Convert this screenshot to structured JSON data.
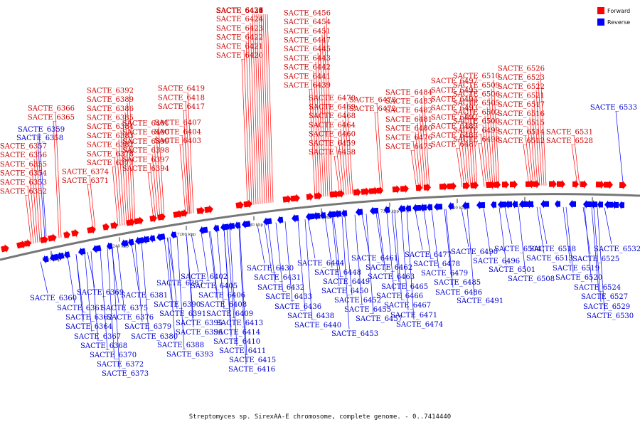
{
  "legend": {
    "forward_label": "Forward",
    "reverse_label": "Reverse",
    "forward_color": "#ff0000",
    "reverse_color": "#0000ff"
  },
  "caption": "Streptomyces sp. SirexAA-E chromosome, complete genome. - 0..7414440",
  "axis_ticks": [
    "7220 kbp",
    "7240 kbp",
    "7260 kbp",
    "7280 kbp",
    "7300 kbp",
    "7320 kbp",
    "7340 kbp",
    "7360 kbp",
    "7380 kbp"
  ],
  "forward_genes": [
    "SACTE_6352",
    "SACTE_6353",
    "SACTE_6354",
    "SACTE_6355",
    "SACTE_6356",
    "SACTE_6357",
    "SACTE_6365",
    "SACTE_6366",
    "SACTE_6371",
    "SACTE_6374",
    "SACTE_6377",
    "SACTE_6378",
    "SACTE_6382",
    "SACTE_6383",
    "SACTE_6384",
    "SACTE_6385",
    "SACTE_6386",
    "SACTE_6389",
    "SACTE_6392",
    "SACTE_6394",
    "SACTE_6397",
    "SACTE_6398",
    "SACTE_6399",
    "SACTE_6400",
    "SACTE_6401",
    "SACTE_6403",
    "SACTE_6404",
    "SACTE_6407",
    "SACTE_6417",
    "SACTE_6418",
    "SACTE_6419",
    "SACTE_6420",
    "SACTE_6421",
    "SACTE_6422",
    "SACTE_6423",
    "SACTE_6424",
    "SACTE_6425",
    "SACTE_6426",
    "SACTE_6427",
    "SACTE_6428",
    "SACTE_6429",
    "SACTE_6434",
    "SACTE_6435",
    "SACTE_6437",
    "SACTE_6439",
    "SACTE_6441",
    "SACTE_6442",
    "SACTE_6443",
    "SACTE_6445",
    "SACTE_6447",
    "SACTE_6451",
    "SACTE_6454",
    "SACTE_6456",
    "SACTE_6458",
    "SACTE_6459",
    "SACTE_6460",
    "SACTE_6464",
    "SACTE_6468",
    "SACTE_6469",
    "SACTE_6470",
    "SACTE_6472",
    "SACTE_6473",
    "SACTE_6475",
    "SACTE_6476",
    "SACTE_6480",
    "SACTE_6481",
    "SACTE_6482",
    "SACTE_6483",
    "SACTE_6484",
    "SACTE_6487",
    "SACTE_6488",
    "SACTE_6489",
    "SACTE_6492",
    "SACTE_6493",
    "SACTE_6494",
    "SACTE_6495",
    "SACTE_6497",
    "SACTE_6498",
    "SACTE_6499",
    "SACTE_6500",
    "SACTE_6502",
    "SACTE_6505",
    "SACTE_6506",
    "SACTE_6509",
    "SACTE_6510",
    "SACTE_6512",
    "SACTE_6514",
    "SACTE_6515",
    "SACTE_6516",
    "SACTE_6517",
    "SACTE_6521",
    "SACTE_6522",
    "SACTE_6523",
    "SACTE_6526",
    "SACTE_6528",
    "SACTE_6531"
  ],
  "reverse_genes": [
    "SACTE_6358",
    "SACTE_6359",
    "SACTE_6533",
    "SACTE_6360",
    "SACTE_6361",
    "SACTE_6362",
    "SACTE_6364",
    "SACTE_6367",
    "SACTE_6368",
    "SACTE_6369",
    "SACTE_6370",
    "SACTE_6372",
    "SACTE_6373",
    "SACTE_6375",
    "SACTE_6376",
    "SACTE_6379",
    "SACTE_6380",
    "SACTE_6381",
    "SACTE_6387",
    "SACTE_6388",
    "SACTE_6390",
    "SACTE_6391",
    "SACTE_6393",
    "SACTE_6395",
    "SACTE_6396",
    "SACTE_6402",
    "SACTE_6405",
    "SACTE_6406",
    "SACTE_6408",
    "SACTE_6409",
    "SACTE_6410",
    "SACTE_6411",
    "SACTE_6413",
    "SACTE_6414",
    "SACTE_6415",
    "SACTE_6416",
    "SACTE_6430",
    "SACTE_6431",
    "SACTE_6432",
    "SACTE_6433",
    "SACTE_6436",
    "SACTE_6438",
    "SACTE_6440",
    "SACTE_6444",
    "SACTE_6448",
    "SACTE_6449",
    "SACTE_6450",
    "SACTE_6452",
    "SACTE_6453",
    "SACTE_6455",
    "SACTE_6457",
    "SACTE_6461",
    "SACTE_6462",
    "SACTE_6463",
    "SACTE_6465",
    "SACTE_6466",
    "SACTE_6467",
    "SACTE_6471",
    "SACTE_6474",
    "SACTE_6477",
    "SACTE_6478",
    "SACTE_6479",
    "SACTE_6485",
    "SACTE_6486",
    "SACTE_6490",
    "SACTE_6491",
    "SACTE_6496",
    "SACTE_6501",
    "SACTE_6504",
    "SACTE_6508",
    "SACTE_6513",
    "SACTE_6518",
    "SACTE_6519",
    "SACTE_6520",
    "SACTE_6524",
    "SACTE_6525",
    "SACTE_6527",
    "SACTE_6529",
    "SACTE_6530",
    "SACTE_6532"
  ]
}
